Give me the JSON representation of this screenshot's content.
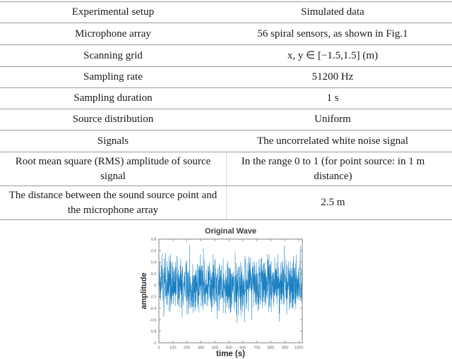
{
  "table": {
    "header": {
      "col1": "Experimental setup",
      "col2": "Simulated data"
    },
    "rows": [
      {
        "label": "Microphone array",
        "value": "56 spiral sensors, as shown in Fig.1"
      },
      {
        "label": "Scanning grid",
        "value": "x, y ∈ [−1.5,1.5]  (m)"
      },
      {
        "label": "Sampling rate",
        "value": "51200 Hz"
      },
      {
        "label": "Sampling duration",
        "value": "1 s"
      },
      {
        "label": "Source distribution",
        "value": "Uniform"
      },
      {
        "label": "Signals",
        "value": "The uncorrelated white noise signal"
      },
      {
        "label": "Root mean square (RMS) amplitude of source signal",
        "value": "In the range 0 to 1 (for point source: in 1 m distance)"
      },
      {
        "label": "The distance between the sound source point and the microphone array",
        "value": "2.5 m"
      }
    ]
  },
  "chart_data": {
    "type": "line",
    "title": "Original Wave",
    "xlabel": "time (s)",
    "ylabel": "amplitude",
    "xlim": [
      0,
      1024
    ],
    "ylim": [
      -1,
      0.8
    ],
    "x_ticks": [
      0,
      100,
      200,
      300,
      400,
      500,
      600,
      700,
      800,
      900,
      1000
    ],
    "x_tick_labels": [
      "0",
      "100",
      "200",
      "300",
      "400",
      "500",
      "600",
      "700",
      "800",
      "900",
      "1000"
    ],
    "y_ticks": [
      0.8,
      0.6,
      0.4,
      0.2,
      0,
      -0.2,
      -0.4,
      -0.6,
      -0.8,
      -1
    ],
    "y_tick_labels": [
      "0.8",
      "0.6",
      "0.4",
      "0.2",
      "0",
      "-0.2",
      "-0.4",
      "-0.6",
      "-0.8",
      "-1"
    ],
    "grid": false,
    "legend": null,
    "series": [
      {
        "name": "white noise signal",
        "signal": "uncorrelated white noise",
        "generator": {
          "seed": 9,
          "count": 1024,
          "scale": 0.5,
          "clip_min": -0.85,
          "clip_max": 0.72
        }
      }
    ],
    "line_color": "#0072BD",
    "axis_color": "#7f7f7f",
    "tick_label_color": "#616161",
    "title_color": "#3d3d3d",
    "label_color": "#2b2b2b"
  }
}
